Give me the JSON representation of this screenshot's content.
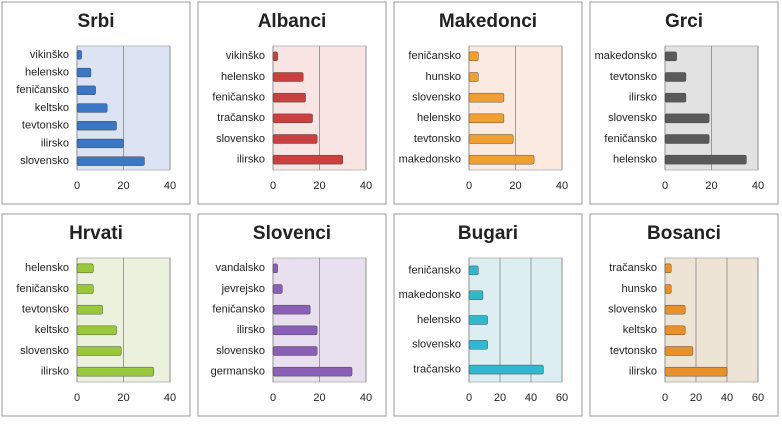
{
  "chart_data": [
    {
      "type": "bar",
      "orientation": "horizontal",
      "title": "Srbi",
      "color": "#3a77c4",
      "background": "#dce3f2",
      "categories": [
        "vikinško",
        "helensko",
        "feničansko",
        "keltsko",
        "tevtonsko",
        "ilirsko",
        "slovensko"
      ],
      "values": [
        2,
        6,
        8,
        13,
        17,
        20,
        29
      ],
      "xlim": [
        0,
        40
      ],
      "xticks": [
        0,
        20,
        40
      ],
      "grid": true
    },
    {
      "type": "bar",
      "orientation": "horizontal",
      "title": "Albanci",
      "color": "#c9403e",
      "background": "#f8e5e3",
      "categories": [
        "vikinško",
        "helensko",
        "feničansko",
        "tračansko",
        "slovensko",
        "ilirsko"
      ],
      "values": [
        2,
        13,
        14,
        17,
        19,
        30
      ],
      "xlim": [
        0,
        40
      ],
      "xticks": [
        0,
        20,
        40
      ],
      "grid": true
    },
    {
      "type": "bar",
      "orientation": "horizontal",
      "title": "Makedonci",
      "color": "#f0a030",
      "background": "#fbeae0",
      "categories": [
        "feničansko",
        "hunsko",
        "slovensko",
        "helensko",
        "tevtonsko",
        "makedonsko"
      ],
      "values": [
        4,
        4,
        15,
        15,
        19,
        28
      ],
      "xlim": [
        0,
        40
      ],
      "xticks": [
        0,
        20,
        40
      ],
      "grid": true
    },
    {
      "type": "bar",
      "orientation": "horizontal",
      "title": "Grci",
      "color": "#5a5a5a",
      "background": "#e2e2e2",
      "categories": [
        "makedonsko",
        "tevtonsko",
        "ilirsko",
        "slovensko",
        "feničansko",
        "helensko"
      ],
      "values": [
        5,
        9,
        9,
        19,
        19,
        35
      ],
      "xlim": [
        0,
        40
      ],
      "xticks": [
        0,
        20,
        40
      ],
      "grid": true
    },
    {
      "type": "bar",
      "orientation": "horizontal",
      "title": "Hrvati",
      "color": "#9ac83c",
      "background": "#ebf1dd",
      "categories": [
        "helensko",
        "feničansko",
        "tevtonsko",
        "keltsko",
        "slovensko",
        "ilirsko"
      ],
      "values": [
        7,
        7,
        11,
        17,
        19,
        33
      ],
      "xlim": [
        0,
        40
      ],
      "xticks": [
        0,
        20,
        40
      ],
      "grid": true
    },
    {
      "type": "bar",
      "orientation": "horizontal",
      "title": "Slovenci",
      "color": "#8a5fb6",
      "background": "#e8e0ef",
      "categories": [
        "vandalsko",
        "jevrejsko",
        "feničansko",
        "ilirsko",
        "slovensko",
        "germansko"
      ],
      "values": [
        2,
        4,
        16,
        19,
        19,
        34
      ],
      "xlim": [
        0,
        40
      ],
      "xticks": [
        0,
        20,
        40
      ],
      "grid": true
    },
    {
      "type": "bar",
      "orientation": "horizontal",
      "title": "Bugari",
      "color": "#30b8cc",
      "background": "#dcEEf2",
      "categories": [
        "feničansko",
        "makedonsko",
        "helensko",
        "slovensko",
        "tračansko"
      ],
      "values": [
        6,
        9,
        12,
        12,
        48
      ],
      "xlim": [
        0,
        60
      ],
      "xticks": [
        0,
        20,
        40,
        60
      ],
      "grid": true
    },
    {
      "type": "bar",
      "orientation": "horizontal",
      "title": "Bosanci",
      "color": "#e8902a",
      "background": "#eee4d6",
      "categories": [
        "tračansko",
        "hunsko",
        "slovensko",
        "keltsko",
        "tevtonsko",
        "ilirsko"
      ],
      "values": [
        4,
        4,
        13,
        13,
        18,
        40
      ],
      "xlim": [
        0,
        60
      ],
      "xticks": [
        0,
        20,
        40,
        60
      ],
      "grid": true
    }
  ]
}
